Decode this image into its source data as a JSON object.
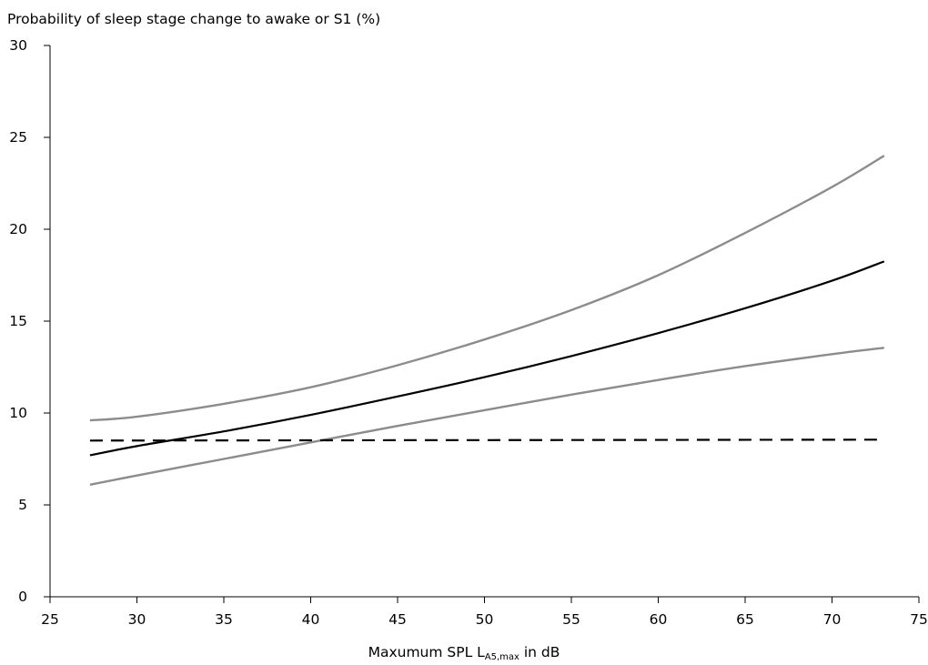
{
  "chart_data": {
    "type": "line",
    "title": "",
    "ylabel": "Probability of sleep stage change to awake or S1 (%)",
    "xlabel": {
      "prefix": "Maxumum SPL L",
      "subscript": "A5,max",
      "suffix": " in dB"
    },
    "xlim": [
      25,
      75
    ],
    "ylim": [
      0,
      30
    ],
    "x_ticks": [
      25,
      30,
      35,
      40,
      45,
      50,
      55,
      60,
      65,
      70,
      75
    ],
    "y_ticks": [
      0,
      5,
      10,
      15,
      20,
      25,
      30
    ],
    "grid": false,
    "legend": "none",
    "series": [
      {
        "color": "#8c8c8c",
        "style": "solid",
        "points": [
          [
            27.3,
            9.6
          ],
          [
            30,
            9.8
          ],
          [
            35,
            10.5
          ],
          [
            40,
            11.4
          ],
          [
            45,
            12.6
          ],
          [
            50,
            14.0
          ],
          [
            55,
            15.6
          ],
          [
            60,
            17.5
          ],
          [
            65,
            19.8
          ],
          [
            70,
            22.3
          ],
          [
            73,
            24.0
          ]
        ]
      },
      {
        "color": "#000000",
        "style": "solid",
        "points": [
          [
            27.3,
            7.7
          ],
          [
            30,
            8.2
          ],
          [
            35,
            9.0
          ],
          [
            40,
            9.9
          ],
          [
            45,
            10.9
          ],
          [
            50,
            11.95
          ],
          [
            55,
            13.1
          ],
          [
            60,
            14.35
          ],
          [
            65,
            15.7
          ],
          [
            70,
            17.2
          ],
          [
            73,
            18.25
          ]
        ]
      },
      {
        "color": "#8c8c8c",
        "style": "solid",
        "points": [
          [
            27.3,
            6.1
          ],
          [
            30,
            6.6
          ],
          [
            35,
            7.5
          ],
          [
            40,
            8.4
          ],
          [
            45,
            9.3
          ],
          [
            50,
            10.15
          ],
          [
            55,
            11.0
          ],
          [
            60,
            11.8
          ],
          [
            65,
            12.55
          ],
          [
            70,
            13.2
          ],
          [
            73,
            13.55
          ]
        ]
      },
      {
        "color": "#000000",
        "style": "dashed",
        "points": [
          [
            27.3,
            8.5
          ],
          [
            73,
            8.55
          ]
        ]
      }
    ]
  }
}
